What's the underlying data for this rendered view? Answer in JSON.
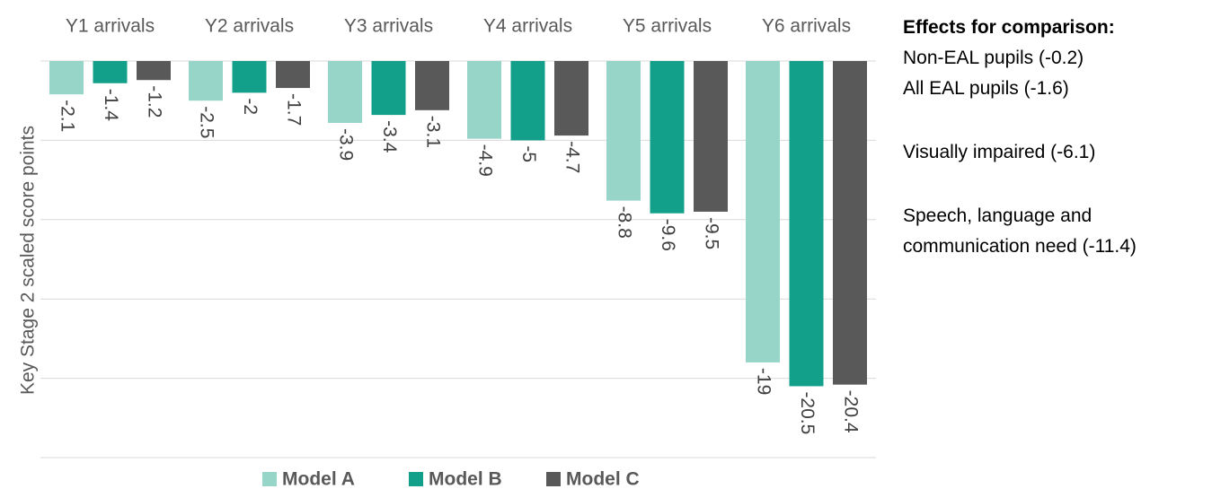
{
  "chart_data": {
    "type": "bar",
    "categories": [
      "Y1 arrivals",
      "Y2 arrivals",
      "Y3 arrivals",
      "Y4 arrivals",
      "Y5 arrivals",
      "Y6 arrivals"
    ],
    "series": [
      {
        "name": "Model A",
        "color": "#96d5c8",
        "values": [
          -2.1,
          -2.5,
          -3.9,
          -4.9,
          -8.8,
          -19.0
        ]
      },
      {
        "name": "Model B",
        "color": "#12a08a",
        "values": [
          -1.4,
          -2.0,
          -3.4,
          -5.0,
          -9.6,
          -20.5
        ]
      },
      {
        "name": "Model C",
        "color": "#595959",
        "values": [
          -1.2,
          -1.7,
          -3.1,
          -4.7,
          -9.5,
          -20.4
        ]
      }
    ],
    "y_label": "Key Stage 2 scaled score points",
    "ylim": [
      -25,
      0
    ],
    "yticks": [
      0,
      -5,
      -10,
      -15,
      -20,
      -25
    ],
    "grid": true,
    "annotations": {
      "title": "Effects for comparison:",
      "lines": [
        "Non-EAL pupils (-0.2)",
        "All EAL pupils (-1.6)",
        "Visually impaired (-6.1)",
        "Speech, language and communication need (-11.4)"
      ]
    }
  }
}
